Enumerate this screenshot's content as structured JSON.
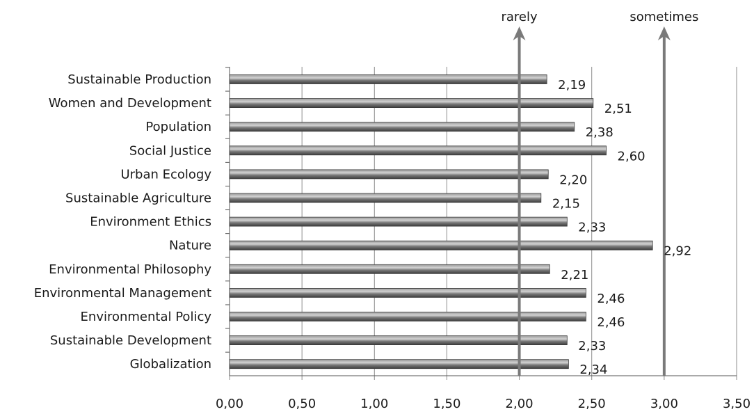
{
  "chart_data": {
    "type": "bar",
    "orientation": "horizontal",
    "categories": [
      "Sustainable Production",
      "Women and Development",
      "Population",
      "Social Justice",
      "Urban Ecology",
      "Sustainable Agriculture",
      "Environment Ethics",
      "Nature",
      "Environmental Philosophy",
      "Environmental Management",
      "Environmental Policy",
      "Sustainable Development",
      "Globalization"
    ],
    "values": [
      2.19,
      2.51,
      2.38,
      2.6,
      2.2,
      2.15,
      2.33,
      2.92,
      2.21,
      2.46,
      2.46,
      2.33,
      2.34
    ],
    "value_labels": [
      "2,19",
      "2,51",
      "2,38",
      "2,60",
      "2,20",
      "2,15",
      "2,33",
      "2,92",
      "2,21",
      "2,46",
      "2,46",
      "2,33",
      "2,34"
    ],
    "xlim": [
      0,
      3.5
    ],
    "x_ticks": [
      0,
      0.5,
      1.0,
      1.5,
      2.0,
      2.5,
      3.0,
      3.5
    ],
    "x_tick_labels": [
      "0,00",
      "0,50",
      "1,00",
      "1,50",
      "2,00",
      "2,50",
      "3,00",
      "3,50"
    ],
    "grid": "vertical",
    "legend": "none",
    "reference_lines": [
      {
        "label": "rarely",
        "value": 2.0
      },
      {
        "label": "sometimes",
        "value": 3.0
      }
    ],
    "colors": {
      "bar": "#6e6e6e",
      "bar_highlight": "#bdbdbd",
      "grid": "#8c8c8c",
      "reference": "#7a7a7a"
    }
  }
}
